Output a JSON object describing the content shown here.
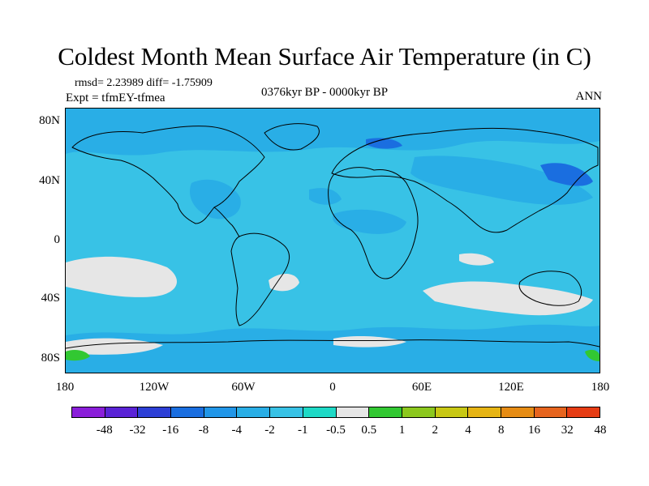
{
  "title": "Coldest Month Mean Surface Air Temperature (in C)",
  "stats_line": "rmsd= 2.23989 diff= -1.75909",
  "expt_line": "Expt = tfmEY-tfmea",
  "period_line": "0376kyr BP - 0000kyr BP",
  "season_label": "ANN",
  "map": {
    "projection": "cylindrical-equidistant",
    "lon_range": [
      -180,
      180
    ],
    "lat_range": [
      -90,
      90
    ],
    "ocean_base_color": "#38c2e6",
    "lat_ticks": [
      "80N",
      "40N",
      "0",
      "40S",
      "80S"
    ],
    "lon_ticks": [
      "180",
      "120W",
      "60W",
      "0",
      "60E",
      "120E",
      "180"
    ]
  },
  "colorbar": {
    "colors": [
      "#8a1ed9",
      "#5a23d6",
      "#2d3fd6",
      "#1a6ee0",
      "#2196e8",
      "#29aee6",
      "#38c2e6",
      "#1ed9c6",
      "#e6e6e6",
      "#32c832",
      "#8cc81e",
      "#c8c814",
      "#e6b414",
      "#e68c14",
      "#e6641e",
      "#e63c14"
    ],
    "labels": [
      "-48",
      "-32",
      "-16",
      "-8",
      "-4",
      "-2",
      "-1",
      "-0.5",
      "0.5",
      "1",
      "2",
      "4",
      "8",
      "16",
      "32",
      "48"
    ]
  }
}
